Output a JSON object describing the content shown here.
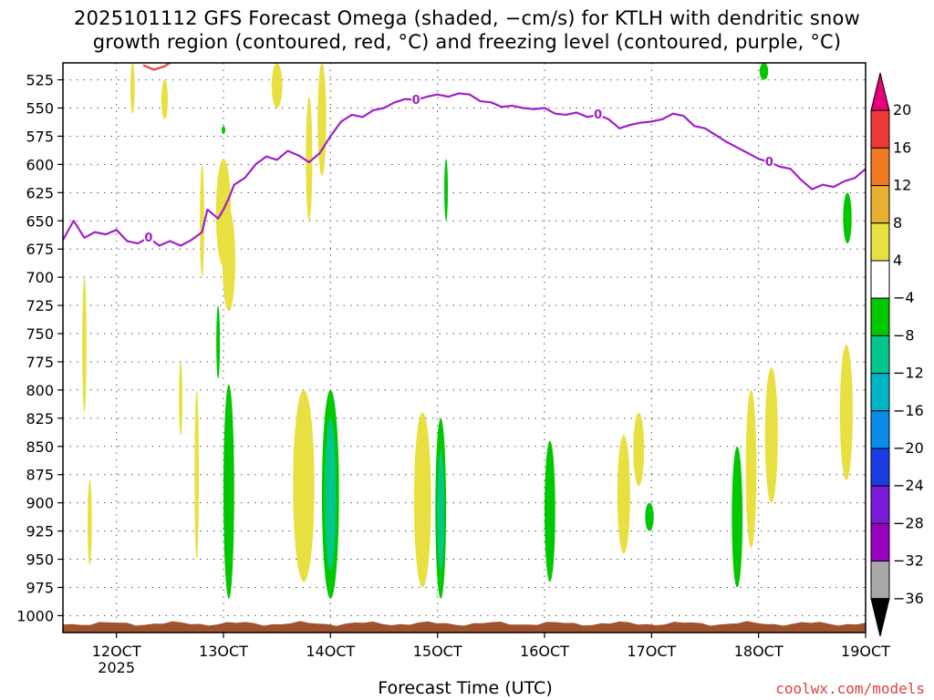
{
  "chart_data": {
    "type": "heatmap",
    "title_lines": [
      "2025101112 GFS Forecast Omega (shaded, −cm/s) for KTLH with dendritic snow",
      "growth region (contoured, red, °C) and freezing level (contoured, purple, °C)"
    ],
    "xlabel": "Forecast Time (UTC)",
    "ylabel": "",
    "x_ticks": [
      "12OCT",
      "13OCT",
      "14OCT",
      "15OCT",
      "16OCT",
      "17OCT",
      "18OCT",
      "19OCT"
    ],
    "x_year_label": "2025",
    "x_range_days": [
      11.5,
      19.0
    ],
    "y_ticks": [
      525,
      550,
      575,
      600,
      625,
      650,
      675,
      700,
      725,
      750,
      775,
      800,
      825,
      850,
      875,
      900,
      925,
      950,
      975,
      1000
    ],
    "y_range_hpa": [
      510,
      1015
    ],
    "grid": true,
    "colorbar": {
      "ticks": [
        "20",
        "16",
        "12",
        "8",
        "4",
        "−4",
        "−8",
        "−12",
        "−16",
        "−20",
        "−24",
        "−28",
        "−32",
        "−36"
      ],
      "colors": [
        "#e8007a",
        "#f03a3a",
        "#f07a22",
        "#e8b030",
        "#e8e040",
        "#ffffff",
        "#00c800",
        "#00c88c",
        "#00b4c8",
        "#0a8ce8",
        "#1a3ce0",
        "#7a1ad8",
        "#9a00c0",
        "#a8a8a8",
        "#000000"
      ]
    },
    "freezing_level": {
      "label": "0",
      "color": "#a020c8",
      "points": [
        [
          11.5,
          667
        ],
        [
          11.6,
          650
        ],
        [
          11.7,
          665
        ],
        [
          11.8,
          660
        ],
        [
          11.9,
          662
        ],
        [
          12.0,
          658
        ],
        [
          12.1,
          668
        ],
        [
          12.2,
          670
        ],
        [
          12.3,
          665
        ],
        [
          12.4,
          672
        ],
        [
          12.5,
          668
        ],
        [
          12.6,
          672
        ],
        [
          12.7,
          667
        ],
        [
          12.8,
          660
        ],
        [
          12.85,
          640
        ],
        [
          12.95,
          648
        ],
        [
          13.0,
          640
        ],
        [
          13.05,
          630
        ],
        [
          13.1,
          618
        ],
        [
          13.2,
          612
        ],
        [
          13.3,
          600
        ],
        [
          13.4,
          593
        ],
        [
          13.5,
          596
        ],
        [
          13.6,
          588
        ],
        [
          13.7,
          592
        ],
        [
          13.8,
          598
        ],
        [
          13.9,
          590
        ],
        [
          14.0,
          575
        ],
        [
          14.1,
          562
        ],
        [
          14.2,
          556
        ],
        [
          14.3,
          558
        ],
        [
          14.4,
          552
        ],
        [
          14.5,
          550
        ],
        [
          14.6,
          545
        ],
        [
          14.7,
          542
        ],
        [
          14.8,
          543
        ],
        [
          14.9,
          540
        ],
        [
          15.0,
          538
        ],
        [
          15.1,
          540
        ],
        [
          15.2,
          537
        ],
        [
          15.3,
          538
        ],
        [
          15.4,
          544
        ],
        [
          15.5,
          545
        ],
        [
          15.6,
          549
        ],
        [
          15.7,
          548
        ],
        [
          15.8,
          550
        ],
        [
          15.9,
          551
        ],
        [
          16.0,
          550
        ],
        [
          16.1,
          555
        ],
        [
          16.2,
          556
        ],
        [
          16.3,
          554
        ],
        [
          16.4,
          558
        ],
        [
          16.5,
          556
        ],
        [
          16.6,
          560
        ],
        [
          16.7,
          568
        ],
        [
          16.8,
          565
        ],
        [
          16.9,
          563
        ],
        [
          17.0,
          562
        ],
        [
          17.1,
          560
        ],
        [
          17.2,
          555
        ],
        [
          17.3,
          557
        ],
        [
          17.4,
          566
        ],
        [
          17.5,
          568
        ],
        [
          17.6,
          574
        ],
        [
          17.7,
          580
        ],
        [
          17.8,
          585
        ],
        [
          17.9,
          590
        ],
        [
          18.0,
          595
        ],
        [
          18.1,
          598
        ],
        [
          18.2,
          602
        ],
        [
          18.3,
          604
        ],
        [
          18.4,
          614
        ],
        [
          18.5,
          622
        ],
        [
          18.6,
          618
        ],
        [
          18.7,
          620
        ],
        [
          18.8,
          615
        ],
        [
          18.9,
          612
        ],
        [
          19.0,
          604
        ]
      ]
    },
    "dendritic_growth_contour": {
      "color": "#f04040",
      "points": [
        [
          12.25,
          512
        ],
        [
          12.35,
          516
        ],
        [
          12.45,
          513
        ],
        [
          12.5,
          510
        ]
      ]
    },
    "shaded_regions": [
      {
        "color": "#e8e040",
        "t": 12.15,
        "p1": 510,
        "p2": 555,
        "w": 0.02
      },
      {
        "color": "#e8e040",
        "t": 12.45,
        "p1": 525,
        "p2": 560,
        "w": 0.03
      },
      {
        "color": "#e8e040",
        "t": 13.0,
        "p1": 595,
        "p2": 690,
        "w": 0.07
      },
      {
        "color": "#e8e040",
        "t": 13.05,
        "p1": 640,
        "p2": 730,
        "w": 0.06
      },
      {
        "color": "#e8e040",
        "t": 12.8,
        "p1": 600,
        "p2": 700,
        "w": 0.02
      },
      {
        "color": "#e8e040",
        "t": 13.5,
        "p1": 510,
        "p2": 550,
        "w": 0.05
      },
      {
        "color": "#e8e040",
        "t": 13.92,
        "p1": 510,
        "p2": 610,
        "w": 0.04
      },
      {
        "color": "#e8e040",
        "t": 13.8,
        "p1": 540,
        "p2": 650,
        "w": 0.03
      },
      {
        "color": "#e8e040",
        "t": 11.7,
        "p1": 700,
        "p2": 820,
        "w": 0.02
      },
      {
        "color": "#e8e040",
        "t": 11.75,
        "p1": 880,
        "p2": 955,
        "w": 0.02
      },
      {
        "color": "#e8e040",
        "t": 12.6,
        "p1": 775,
        "p2": 840,
        "w": 0.01
      },
      {
        "color": "#e8e040",
        "t": 12.75,
        "p1": 800,
        "p2": 950,
        "w": 0.02
      },
      {
        "color": "#00c800",
        "t": 13.05,
        "p1": 795,
        "p2": 985,
        "w": 0.05
      },
      {
        "color": "#00c800",
        "t": 12.95,
        "p1": 725,
        "p2": 790,
        "w": 0.01
      },
      {
        "color": "#e8e040",
        "t": 13.75,
        "p1": 800,
        "p2": 970,
        "w": 0.1
      },
      {
        "color": "#00c800",
        "t": 14.0,
        "p1": 800,
        "p2": 985,
        "w": 0.08
      },
      {
        "color": "#00c88c",
        "t": 14.0,
        "p1": 825,
        "p2": 960,
        "w": 0.05
      },
      {
        "color": "#e8e040",
        "t": 14.86,
        "p1": 820,
        "p2": 975,
        "w": 0.08
      },
      {
        "color": "#00c800",
        "t": 15.03,
        "p1": 825,
        "p2": 985,
        "w": 0.05
      },
      {
        "color": "#00c88c",
        "t": 15.03,
        "p1": 855,
        "p2": 960,
        "w": 0.03
      },
      {
        "color": "#00c800",
        "t": 15.08,
        "p1": 595,
        "p2": 650,
        "w": 0.015
      },
      {
        "color": "#00c800",
        "t": 16.05,
        "p1": 845,
        "p2": 970,
        "w": 0.05
      },
      {
        "color": "#e8e040",
        "t": 16.74,
        "p1": 840,
        "p2": 945,
        "w": 0.06
      },
      {
        "color": "#e8e040",
        "t": 16.88,
        "p1": 820,
        "p2": 885,
        "w": 0.05
      },
      {
        "color": "#00c800",
        "t": 16.98,
        "p1": 900,
        "p2": 925,
        "w": 0.04
      },
      {
        "color": "#00c800",
        "t": 17.8,
        "p1": 850,
        "p2": 975,
        "w": 0.05
      },
      {
        "color": "#e8e040",
        "t": 17.93,
        "p1": 800,
        "p2": 940,
        "w": 0.05
      },
      {
        "color": "#e8e040",
        "t": 18.12,
        "p1": 780,
        "p2": 900,
        "w": 0.06
      },
      {
        "color": "#00c800",
        "t": 18.05,
        "p1": 510,
        "p2": 525,
        "w": 0.04
      },
      {
        "color": "#e8e040",
        "t": 18.82,
        "p1": 760,
        "p2": 880,
        "w": 0.06
      },
      {
        "color": "#00c800",
        "t": 18.83,
        "p1": 625,
        "p2": 670,
        "w": 0.04
      },
      {
        "color": "#00c800",
        "t": 13.0,
        "p1": 566,
        "p2": 573,
        "w": 0.01
      }
    ],
    "terrain_color": "#a0522d"
  },
  "footer": {
    "credit": "coolwx.com/models"
  }
}
